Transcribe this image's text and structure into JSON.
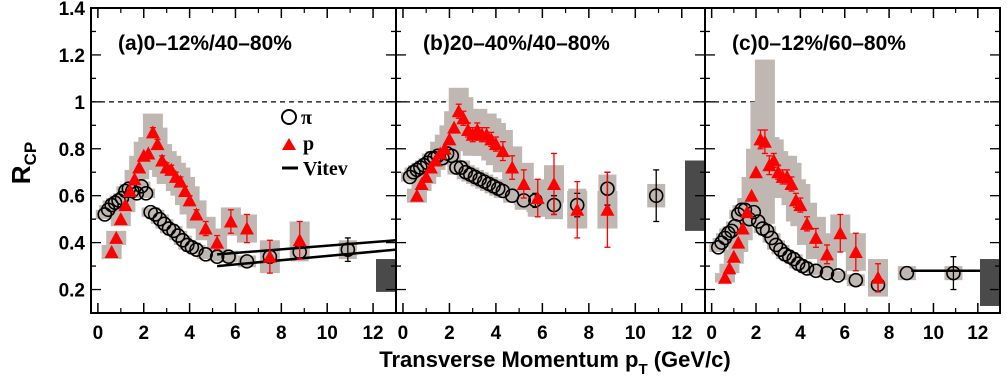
{
  "figure": {
    "xlabel_main": "Transverse Momentum p",
    "xlabel_sub": "T",
    "xlabel_unit": " (GeV/c)",
    "ylabel_main": "R",
    "ylabel_sub": "CP"
  },
  "legend": {
    "pi_label": "π",
    "p_label": "p",
    "model_label": "Vitev"
  },
  "colors": {
    "proton": "#ff0000",
    "pion": "#000000",
    "syst_box": "#c0b7b2",
    "norm_box": "#4a4a4a",
    "model_line": "#000000"
  },
  "chart_data": [
    {
      "type": "scatter",
      "title": "(a)0–12%/40–80%",
      "xlim": [
        -0.3,
        13.0
      ],
      "ylim": [
        0.1,
        1.4
      ],
      "xticks": [
        "0",
        "2",
        "4",
        "6",
        "8",
        "10",
        "12"
      ],
      "yticks": [
        "0.2",
        "0.4",
        "0.6",
        "0.8",
        "1",
        "1.2",
        "1.4"
      ],
      "reference_line": 1.0,
      "series": [
        {
          "name": "π",
          "marker": "open-circle",
          "x": [
            0.3,
            0.45,
            0.6,
            0.75,
            0.9,
            1.05,
            1.2,
            1.35,
            1.5,
            1.7,
            1.9,
            2.1,
            2.3,
            2.5,
            2.7,
            2.9,
            3.1,
            3.3,
            3.5,
            3.7,
            3.9,
            4.1,
            4.3,
            4.7,
            5.2,
            5.7,
            6.5,
            7.5,
            8.8,
            10.9
          ],
          "y": [
            0.52,
            0.54,
            0.56,
            0.57,
            0.58,
            0.59,
            0.62,
            0.63,
            0.62,
            0.61,
            0.64,
            0.61,
            0.53,
            0.52,
            0.5,
            0.48,
            0.46,
            0.45,
            0.43,
            0.41,
            0.39,
            0.38,
            0.37,
            0.35,
            0.34,
            0.34,
            0.32,
            0.34,
            0.36,
            0.37
          ],
          "err": [
            0,
            0,
            0,
            0,
            0,
            0,
            0,
            0,
            0,
            0,
            0,
            0,
            0,
            0,
            0,
            0,
            0,
            0,
            0,
            0,
            0,
            0,
            0,
            0,
            0,
            0,
            0,
            0,
            0,
            0.05
          ],
          "syst": [
            0.02,
            0.02,
            0.02,
            0.02,
            0.02,
            0.02,
            0.02,
            0.02,
            0.02,
            0.02,
            0.02,
            0.02,
            0.02,
            0.02,
            0.02,
            0.02,
            0.02,
            0.02,
            0.02,
            0.02,
            0.02,
            0.02,
            0.02,
            0.02,
            0.02,
            0.025,
            0.025,
            0.03,
            0.04,
            0.04
          ]
        },
        {
          "name": "p",
          "marker": "filled-triangle",
          "x": [
            0.6,
            0.8,
            1.0,
            1.2,
            1.4,
            1.6,
            1.8,
            2.0,
            2.2,
            2.4,
            2.6,
            2.8,
            3.0,
            3.2,
            3.4,
            3.6,
            3.8,
            4.0,
            4.3,
            4.7,
            5.2,
            5.8,
            6.5,
            7.5,
            8.8
          ],
          "y": [
            0.36,
            0.42,
            0.5,
            0.56,
            0.62,
            0.67,
            0.72,
            0.77,
            0.78,
            0.87,
            0.82,
            0.75,
            0.72,
            0.71,
            0.68,
            0.66,
            0.62,
            0.58,
            0.52,
            0.46,
            0.4,
            0.49,
            0.46,
            0.34,
            0.41
          ],
          "err": [
            0,
            0,
            0,
            0,
            0,
            0,
            0,
            0,
            0,
            0.02,
            0.02,
            0.02,
            0.02,
            0.02,
            0.02,
            0.02,
            0.02,
            0.02,
            0.02,
            0.03,
            0.03,
            0.05,
            0.06,
            0.07,
            0.08
          ],
          "syst": [
            0.03,
            0.03,
            0.03,
            0.03,
            0.03,
            0.04,
            0.05,
            0.06,
            0.07,
            0.08,
            0.07,
            0.07,
            0.07,
            0.06,
            0.06,
            0.06,
            0.06,
            0.06,
            0.06,
            0.05,
            0.06,
            0.06,
            0.06,
            0.07,
            0.08
          ]
        }
      ],
      "model_lines": [
        {
          "name": "Vitev",
          "x": [
            5.2,
            13.0
          ],
          "y": [
            0.3,
            0.37
          ]
        },
        {
          "name": "Vitev",
          "x": [
            5.2,
            13.0
          ],
          "y": [
            0.35,
            0.41
          ]
        }
      ],
      "norm_box": {
        "center": 0.26,
        "half_height": 0.07
      }
    },
    {
      "type": "scatter",
      "title": "(b)20–40%/40–80%",
      "xlim": [
        -0.3,
        13.0
      ],
      "ylim": [
        0.1,
        1.4
      ],
      "xticks": [
        "0",
        "2",
        "4",
        "6",
        "8",
        "10",
        "12"
      ],
      "yticks": [],
      "reference_line": 1.0,
      "series": [
        {
          "name": "π",
          "marker": "open-circle",
          "x": [
            0.3,
            0.45,
            0.6,
            0.75,
            0.9,
            1.05,
            1.2,
            1.35,
            1.5,
            1.7,
            1.9,
            2.1,
            2.3,
            2.5,
            2.7,
            2.9,
            3.1,
            3.3,
            3.5,
            3.7,
            3.9,
            4.1,
            4.3,
            4.7,
            5.2,
            5.7,
            6.5,
            7.5,
            8.8,
            10.9
          ],
          "y": [
            0.68,
            0.7,
            0.71,
            0.72,
            0.73,
            0.74,
            0.76,
            0.76,
            0.77,
            0.76,
            0.78,
            0.77,
            0.72,
            0.72,
            0.7,
            0.69,
            0.68,
            0.67,
            0.66,
            0.65,
            0.64,
            0.63,
            0.62,
            0.6,
            0.58,
            0.58,
            0.56,
            0.56,
            0.63,
            0.6
          ],
          "err": [
            0,
            0,
            0,
            0,
            0,
            0,
            0,
            0,
            0,
            0,
            0,
            0,
            0,
            0,
            0,
            0,
            0,
            0,
            0,
            0,
            0,
            0,
            0,
            0,
            0,
            0.03,
            0.04,
            0.05,
            0.07,
            0.11
          ],
          "syst": [
            0.02,
            0.02,
            0.02,
            0.02,
            0.02,
            0.02,
            0.02,
            0.02,
            0.02,
            0.02,
            0.03,
            0.03,
            0.03,
            0.03,
            0.03,
            0.03,
            0.03,
            0.03,
            0.03,
            0.03,
            0.03,
            0.03,
            0.03,
            0.03,
            0.04,
            0.05,
            0.06,
            0.07,
            0.06,
            0.05
          ]
        },
        {
          "name": "p",
          "marker": "filled-triangle",
          "x": [
            0.6,
            0.8,
            1.0,
            1.2,
            1.4,
            1.6,
            1.8,
            2.0,
            2.2,
            2.4,
            2.6,
            2.8,
            3.0,
            3.2,
            3.4,
            3.6,
            3.8,
            4.0,
            4.3,
            4.7,
            5.2,
            5.8,
            6.5,
            7.5,
            8.8
          ],
          "y": [
            0.6,
            0.65,
            0.68,
            0.72,
            0.75,
            0.78,
            0.8,
            0.84,
            0.89,
            0.96,
            0.93,
            0.88,
            0.86,
            0.88,
            0.86,
            0.86,
            0.84,
            0.82,
            0.79,
            0.72,
            0.65,
            0.59,
            0.65,
            0.54,
            0.54
          ],
          "err": [
            0,
            0,
            0,
            0,
            0,
            0,
            0,
            0,
            0,
            0.03,
            0.03,
            0.03,
            0.03,
            0.03,
            0.03,
            0.03,
            0.03,
            0.03,
            0.04,
            0.05,
            0.06,
            0.08,
            0.13,
            0.12,
            0.16
          ],
          "syst": [
            0.03,
            0.03,
            0.03,
            0.04,
            0.04,
            0.05,
            0.06,
            0.06,
            0.07,
            0.1,
            0.09,
            0.09,
            0.09,
            0.09,
            0.09,
            0.09,
            0.09,
            0.09,
            0.09,
            0.09,
            0.09,
            0.08,
            0.08,
            0.08,
            0.08
          ]
        }
      ],
      "model_lines": [],
      "norm_box": {
        "center": 0.6,
        "half_height": 0.15
      }
    },
    {
      "type": "scatter",
      "title": "(c)0–12%/60–80%",
      "xlim": [
        -0.3,
        13.0
      ],
      "ylim": [
        0.1,
        1.4
      ],
      "xticks": [
        "0",
        "2",
        "4",
        "6",
        "8",
        "10",
        "12"
      ],
      "yticks": [],
      "reference_line": 1.0,
      "series": [
        {
          "name": "π",
          "marker": "open-circle",
          "x": [
            0.3,
            0.45,
            0.6,
            0.75,
            0.9,
            1.05,
            1.2,
            1.35,
            1.5,
            1.7,
            1.9,
            2.1,
            2.3,
            2.5,
            2.7,
            2.9,
            3.1,
            3.3,
            3.5,
            3.7,
            3.9,
            4.1,
            4.3,
            4.7,
            5.2,
            5.7,
            6.5,
            7.5,
            8.8,
            10.9
          ],
          "y": [
            0.38,
            0.4,
            0.42,
            0.44,
            0.45,
            0.47,
            0.52,
            0.54,
            0.54,
            0.5,
            0.53,
            0.49,
            0.46,
            0.45,
            0.42,
            0.39,
            0.37,
            0.35,
            0.34,
            0.33,
            0.31,
            0.3,
            0.29,
            0.28,
            0.27,
            0.26,
            0.24,
            0.22,
            0.27,
            0.27
          ],
          "err": [
            0,
            0,
            0,
            0,
            0,
            0,
            0,
            0,
            0,
            0,
            0,
            0,
            0,
            0,
            0,
            0,
            0,
            0,
            0,
            0,
            0,
            0,
            0,
            0,
            0,
            0,
            0,
            0.03,
            0,
            0.07
          ],
          "syst": [
            0.02,
            0.02,
            0.02,
            0.02,
            0.02,
            0.02,
            0.02,
            0.02,
            0.02,
            0.02,
            0.02,
            0.02,
            0.02,
            0.02,
            0.02,
            0.02,
            0.02,
            0.02,
            0.02,
            0.02,
            0.02,
            0.02,
            0.02,
            0.02,
            0.02,
            0.02,
            0.025,
            0.03,
            0.03,
            0.03
          ]
        },
        {
          "name": "p",
          "marker": "filled-triangle",
          "x": [
            0.6,
            0.8,
            1.0,
            1.2,
            1.4,
            1.6,
            1.8,
            2.0,
            2.2,
            2.4,
            2.6,
            2.8,
            3.0,
            3.2,
            3.4,
            3.6,
            3.8,
            4.0,
            4.3,
            4.7,
            5.2,
            5.8,
            6.5,
            7.5
          ],
          "y": [
            0.25,
            0.29,
            0.34,
            0.4,
            0.46,
            0.53,
            0.6,
            0.7,
            0.84,
            0.83,
            0.73,
            0.75,
            0.7,
            0.68,
            0.68,
            0.65,
            0.58,
            0.56,
            0.48,
            0.42,
            0.35,
            0.44,
            0.36,
            0.25
          ],
          "err": [
            0,
            0,
            0,
            0,
            0,
            0,
            0,
            0,
            0.04,
            0.05,
            0.04,
            0.03,
            0.03,
            0.03,
            0.03,
            0.03,
            0.03,
            0.03,
            0.03,
            0.04,
            0.04,
            0.08,
            0.08,
            0.06
          ],
          "syst": [
            0.02,
            0.02,
            0.03,
            0.04,
            0.05,
            0.06,
            0.08,
            0.1,
            0.16,
            0.35,
            0.12,
            0.09,
            0.09,
            0.09,
            0.09,
            0.09,
            0.09,
            0.09,
            0.09,
            0.09,
            0.09,
            0.08,
            0.08,
            0.08
          ]
        }
      ],
      "model_lines": [
        {
          "name": "",
          "x": [
            9.0,
            13.0
          ],
          "y": [
            0.28,
            0.28
          ]
        }
      ],
      "norm_box": {
        "center": 0.23,
        "half_height": 0.1
      }
    }
  ]
}
